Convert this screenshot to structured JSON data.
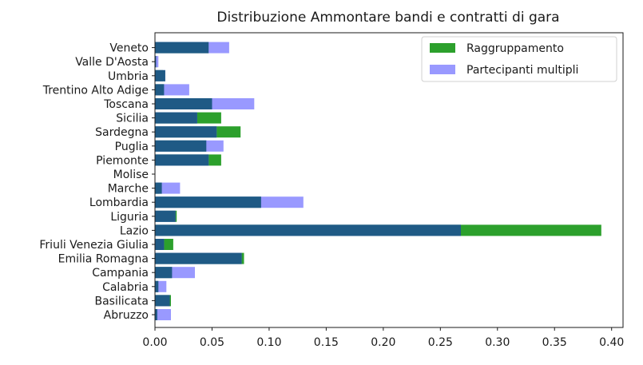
{
  "chart_data": {
    "type": "bar",
    "orientation": "horizontal",
    "stacked": false,
    "title": "Distribuzione Ammontare bandi e contratti di gara",
    "xlabel": "",
    "ylabel": "",
    "xlim": [
      0,
      0.41
    ],
    "xticks": [
      "0.00",
      "0.05",
      "0.10",
      "0.15",
      "0.20",
      "0.25",
      "0.30",
      "0.35",
      "0.40"
    ],
    "grid": false,
    "legend_position": "top-right",
    "categories": [
      "Abruzzo",
      "Basilicata",
      "Calabria",
      "Campania",
      "Emilia Romagna",
      "Friuli Venezia Giulia",
      "Lazio",
      "Liguria",
      "Lombardia",
      "Marche",
      "Molise",
      "Piemonte",
      "Puglia",
      "Sardegna",
      "Sicilia",
      "Toscana",
      "Trentino Alto Adige",
      "Umbria",
      "Valle D'Aosta",
      "Veneto"
    ],
    "series": [
      {
        "name": "Raggruppamento",
        "color": "#2ca02c",
        "values": [
          0.002,
          0.014,
          0.003,
          0.015,
          0.078,
          0.016,
          0.391,
          0.019,
          0.093,
          0.004,
          0.0,
          0.058,
          0.045,
          0.075,
          0.058,
          0.05,
          0.008,
          0.007,
          0.002,
          0.047
        ]
      },
      {
        "name": "Partecipanti multipli",
        "color": "#9999ff",
        "values": [
          0.014,
          0.012,
          0.01,
          0.035,
          0.076,
          0.008,
          0.268,
          0.018,
          0.13,
          0.022,
          0.0,
          0.047,
          0.06,
          0.054,
          0.037,
          0.087,
          0.03,
          0.009,
          0.003,
          0.065
        ]
      },
      {
        "name": "",
        "color": "#1f5a85",
        "values": [
          0.002,
          0.013,
          0.003,
          0.015,
          0.076,
          0.008,
          0.268,
          0.018,
          0.093,
          0.006,
          0.0,
          0.047,
          0.045,
          0.054,
          0.037,
          0.05,
          0.008,
          0.009,
          0.001,
          0.047
        ]
      }
    ]
  }
}
